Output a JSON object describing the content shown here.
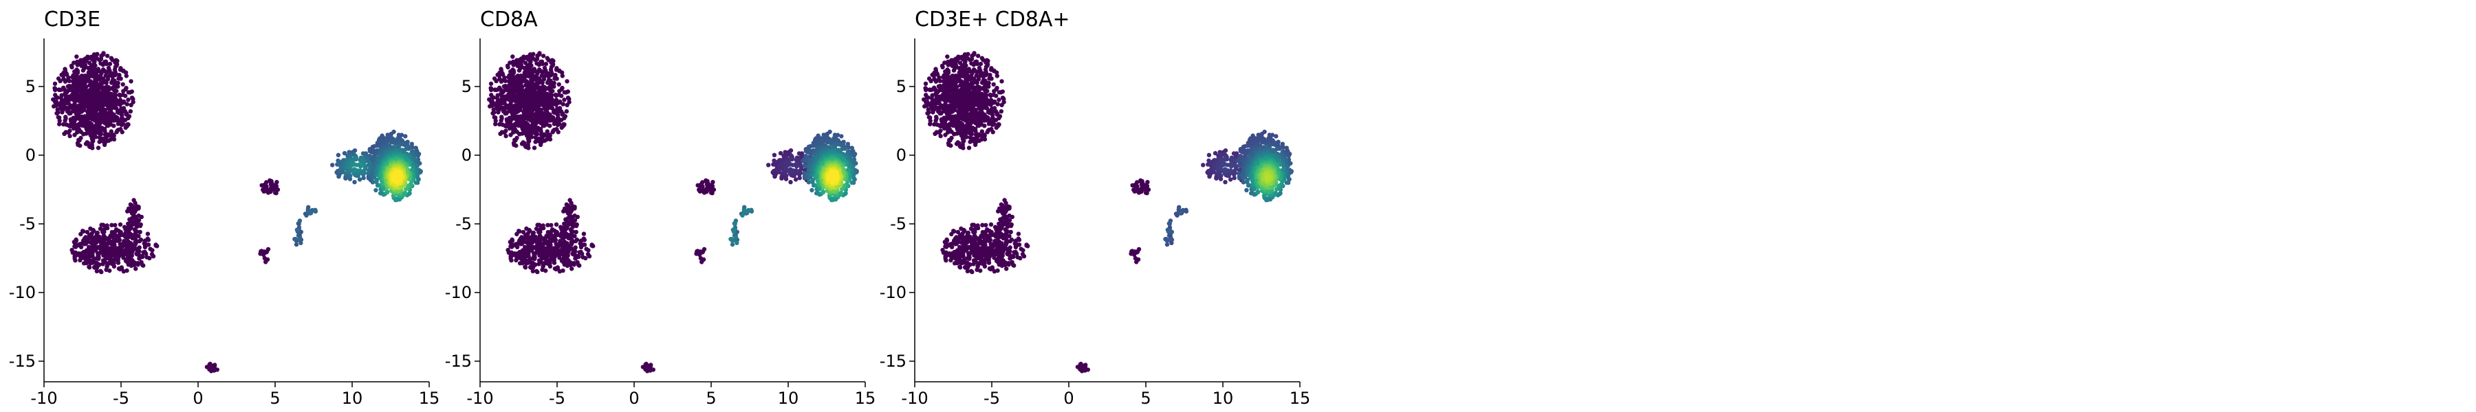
{
  "chart_data": [
    {
      "type": "scatter",
      "title": "CD3E",
      "xlabel": "",
      "ylabel": "",
      "xlim": [
        -10,
        15
      ],
      "ylim": [
        -16.5,
        8.5
      ],
      "xticks": [
        -10,
        -5,
        0,
        5,
        10,
        15
      ],
      "yticks": [
        5,
        0,
        -5,
        -10,
        -15
      ],
      "grid": false,
      "colormap": "viridis",
      "highlight": {
        "main_cluster": {
          "value": 1.0
        },
        "side_cluster": {
          "value": 0.5
        },
        "small_groups": {
          "value": 0.35
        }
      }
    },
    {
      "type": "scatter",
      "title": "CD8A",
      "xlabel": "",
      "ylabel": "",
      "xlim": [
        -10,
        15
      ],
      "ylim": [
        -16.5,
        8.5
      ],
      "xticks": [
        -10,
        -5,
        0,
        5,
        10,
        15
      ],
      "yticks": [
        5,
        0,
        -5,
        -10,
        -15
      ],
      "grid": false,
      "colormap": "viridis",
      "highlight": {
        "main_cluster": {
          "value": 1.0
        },
        "side_cluster": {
          "value": 0.15
        },
        "small_groups": {
          "value": 0.45
        }
      }
    },
    {
      "type": "scatter",
      "title": "CD3E+ CD8A+",
      "xlabel": "",
      "ylabel": "",
      "xlim": [
        -10,
        15
      ],
      "ylim": [
        -16.5,
        8.5
      ],
      "xticks": [
        -10,
        -5,
        0,
        5,
        10,
        15
      ],
      "yticks": [
        5,
        0,
        -5,
        -10,
        -15
      ],
      "grid": false,
      "colormap": "viridis",
      "highlight": {
        "main_cluster": {
          "value": 0.85
        },
        "side_cluster": {
          "value": 0.2
        },
        "small_groups": {
          "value": 0.3
        }
      }
    }
  ],
  "clusters": [
    {
      "name": "top-left",
      "cx": -6.8,
      "cy": 4.0,
      "sx": 1.5,
      "sy": 2.0,
      "n": 900,
      "group": "none"
    },
    {
      "name": "bottom-left",
      "cx": -5.5,
      "cy": -6.8,
      "sx": 1.6,
      "sy": 1.0,
      "n": 420,
      "group": "none"
    },
    {
      "name": "bottom-left-arm",
      "cx": -4.2,
      "cy": -4.5,
      "sx": 0.3,
      "sy": 0.8,
      "n": 50,
      "group": "none"
    },
    {
      "name": "tiny-bottom",
      "cx": 0.9,
      "cy": -15.5,
      "sx": 0.2,
      "sy": 0.25,
      "n": 14,
      "group": "none"
    },
    {
      "name": "small-a",
      "cx": 4.7,
      "cy": -2.3,
      "sx": 0.35,
      "sy": 0.35,
      "n": 40,
      "group": "none"
    },
    {
      "name": "small-b",
      "cx": 4.3,
      "cy": -7.2,
      "sx": 0.18,
      "sy": 0.35,
      "n": 14,
      "group": "none"
    },
    {
      "name": "small-c",
      "cx": 6.5,
      "cy": -5.7,
      "sx": 0.2,
      "sy": 0.6,
      "n": 22,
      "group": "small"
    },
    {
      "name": "small-d",
      "cx": 7.2,
      "cy": -4.1,
      "sx": 0.25,
      "sy": 0.2,
      "n": 16,
      "group": "small"
    },
    {
      "name": "side",
      "cx": 10.3,
      "cy": -0.8,
      "sx": 0.9,
      "sy": 0.7,
      "n": 160,
      "group": "side"
    },
    {
      "name": "main",
      "cx": 12.7,
      "cy": -0.8,
      "sx": 1.0,
      "sy": 1.4,
      "n": 650,
      "group": "main"
    }
  ]
}
